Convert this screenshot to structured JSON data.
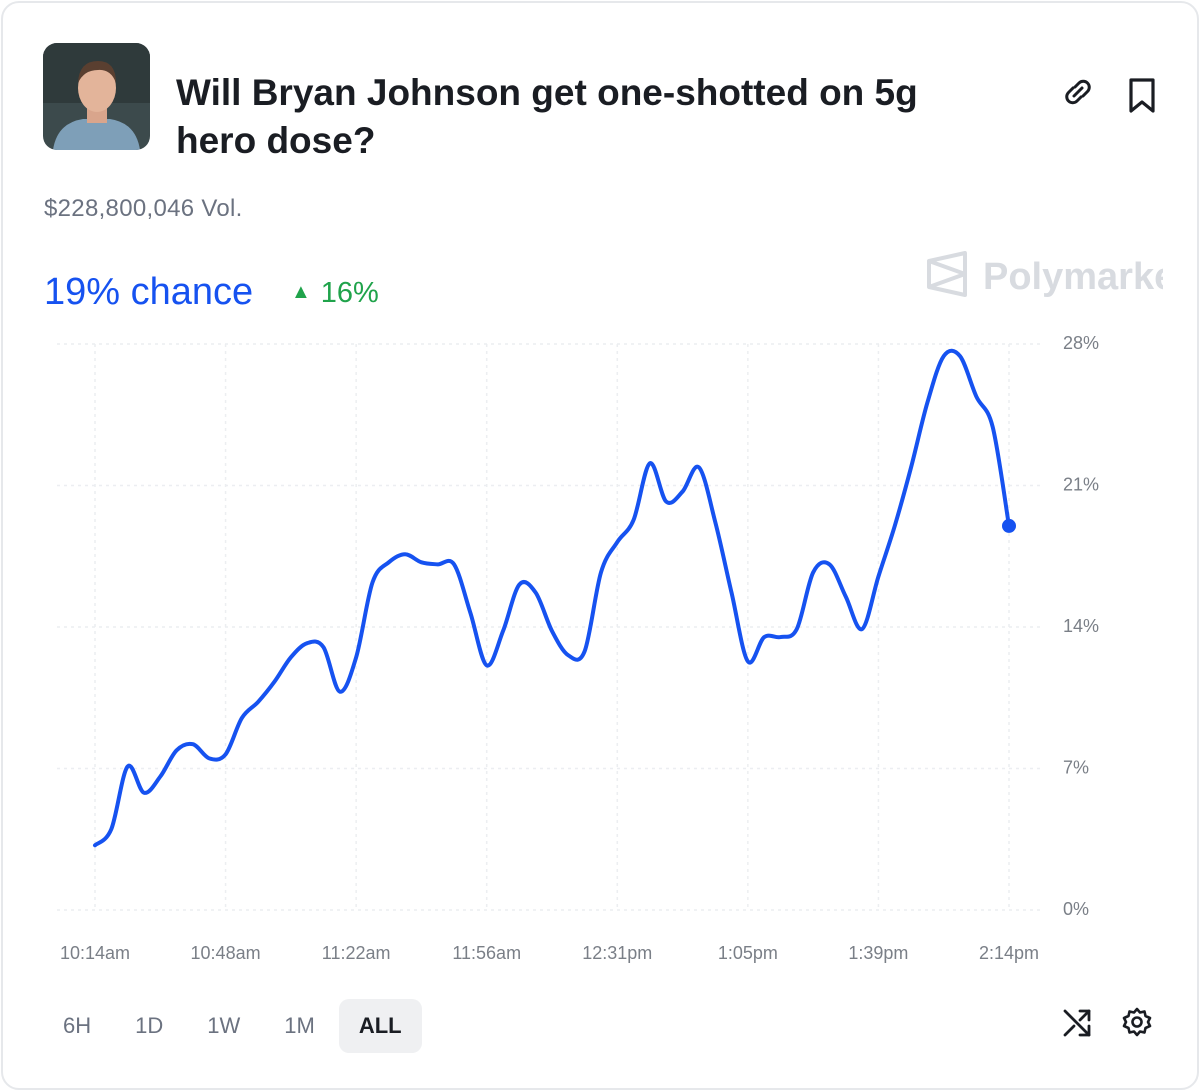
{
  "header": {
    "title": "Will Bryan Johnson get one-shotted on 5g hero dose?",
    "volume": "$228,800,046 Vol."
  },
  "price": {
    "chance": "19% chance",
    "change": "16%"
  },
  "watermark": "Polymarket",
  "chart_data": {
    "type": "line",
    "color": "#1652f0",
    "categories": [
      "10:14am",
      null,
      null,
      null,
      null,
      null,
      null,
      null,
      "10:48am",
      null,
      null,
      null,
      null,
      null,
      null,
      null,
      "11:22am",
      null,
      null,
      null,
      null,
      null,
      null,
      null,
      "11:56am",
      null,
      null,
      null,
      null,
      null,
      null,
      null,
      "12:31pm",
      null,
      null,
      null,
      null,
      null,
      null,
      null,
      "1:05pm",
      null,
      null,
      null,
      null,
      null,
      null,
      null,
      "1:39pm",
      null,
      null,
      null,
      null,
      null,
      null,
      null,
      "2:14pm"
    ],
    "values": [
      3.2,
      4.0,
      7.1,
      5.8,
      6.6,
      7.9,
      8.2,
      7.5,
      7.7,
      9.5,
      10.3,
      11.3,
      12.5,
      13.2,
      13.0,
      10.8,
      12.5,
      16.2,
      17.2,
      17.6,
      17.2,
      17.1,
      17.1,
      14.7,
      12.1,
      13.8,
      16.1,
      15.7,
      13.8,
      12.6,
      12.8,
      16.7,
      18.2,
      19.3,
      22.1,
      20.2,
      20.7,
      21.9,
      19.2,
      15.7,
      12.3,
      13.5,
      13.5,
      13.9,
      16.7,
      17.1,
      15.5,
      13.9,
      16.5,
      19.0,
      21.9,
      25.1,
      27.4,
      27.4,
      25.4,
      23.9,
      19.0
    ],
    "ylim": [
      0,
      28
    ],
    "yticks": [
      {
        "value": 0,
        "label": "0%"
      },
      {
        "value": 7,
        "label": "7%"
      },
      {
        "value": 14,
        "label": "14%"
      },
      {
        "value": 21,
        "label": "21%"
      },
      {
        "value": 28,
        "label": "28%"
      }
    ],
    "grid": true
  },
  "timeframes": [
    "6H",
    "1D",
    "1W",
    "1M",
    "ALL"
  ],
  "selected_timeframe": 4
}
